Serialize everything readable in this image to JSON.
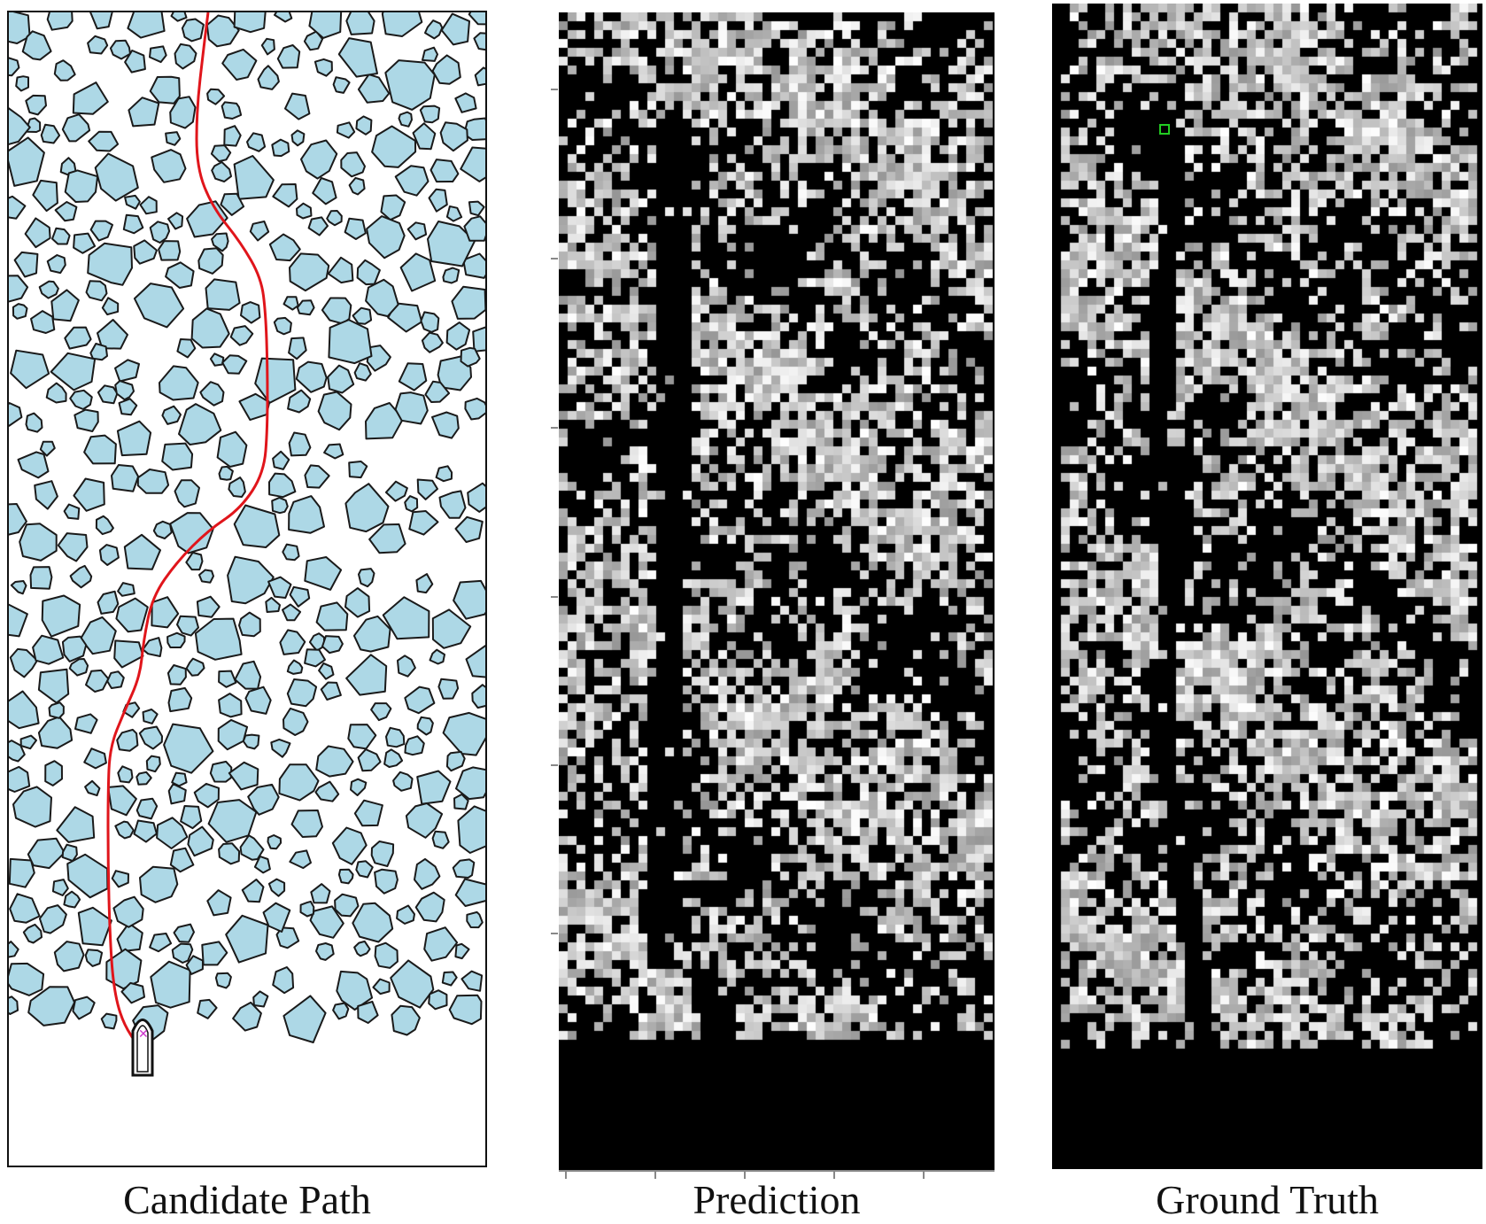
{
  "captions": {
    "candidate": "Candidate Path",
    "prediction": "Prediction",
    "ground_truth": "Ground Truth"
  },
  "colors": {
    "ice_fill": "#add8e6",
    "ice_stroke": "#1a1a1a",
    "path": "#e0151b",
    "map_on": "#ffffff",
    "map_off": "#000000",
    "goal_marker": "#22cc22",
    "ship_marker": "#cc33cc"
  }
}
